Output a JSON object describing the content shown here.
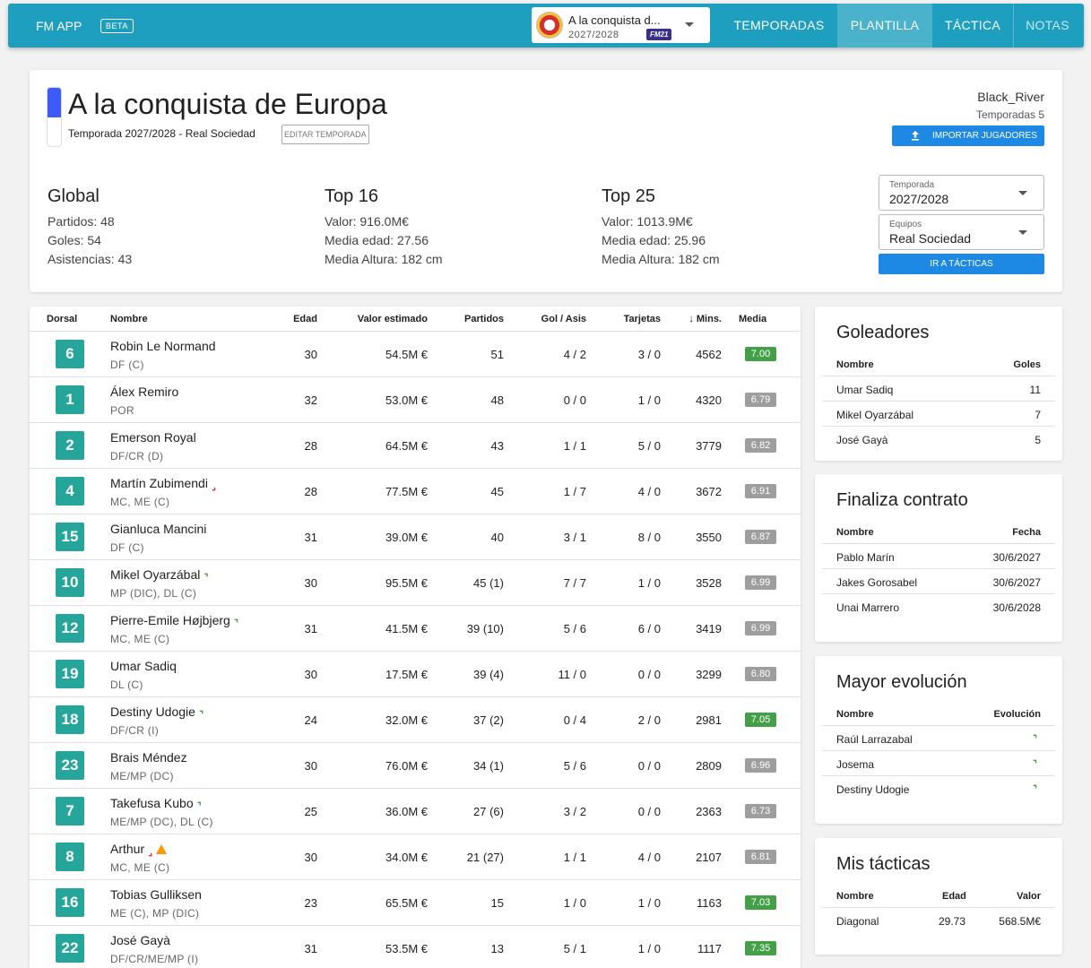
{
  "topbar": {
    "brand": "FM APP",
    "beta": "BETA",
    "career": {
      "name": "A la conquista d...",
      "season": "2027/2028",
      "badge": "FM21"
    },
    "nav": [
      {
        "label": "TEMPORADAS",
        "active": false
      },
      {
        "label": "PLANTILLA",
        "active": true
      },
      {
        "label": "TÁCTICA",
        "active": false
      },
      {
        "label": "NOTAS",
        "active": false
      }
    ]
  },
  "header": {
    "title": "A la conquista de Europa",
    "subtitle": "Temporada 2027/2028 - Real Sociedad",
    "edit_label": "EDITAR TEMPORADA",
    "user": "Black_River",
    "seasons": "Temporadas 5",
    "import_label": "IMPORTAR JUGADORES",
    "flag_colors": [
      "#3d5afe",
      "#ffffff"
    ]
  },
  "stats": {
    "global": {
      "title": "Global",
      "lines": [
        "Partidos: 48",
        "Goles: 54",
        "Asistencias: 43"
      ]
    },
    "top16": {
      "title": "Top 16",
      "lines": [
        "Valor: 916.0M€",
        "Media edad: 27.56",
        "Media Altura: 182 cm"
      ]
    },
    "top25": {
      "title": "Top 25",
      "lines": [
        "Valor: 1013.9M€",
        "Media edad: 25.96",
        "Media Altura: 182 cm"
      ]
    }
  },
  "filters": {
    "season_label": "Temporada",
    "season_value": "2027/2028",
    "team_label": "Equipos",
    "team_value": "Real Sociedad",
    "tactics_label": "IR A TÁCTICAS"
  },
  "table": {
    "headers": {
      "dorsal": "Dorsal",
      "nombre": "Nombre",
      "edad": "Edad",
      "valor": "Valor estimado",
      "partidos": "Partidos",
      "golasis": "Gol / Asis",
      "tarjetas": "Tarjetas",
      "mins": "Mins.",
      "media": "Media"
    },
    "players": [
      {
        "num": "6",
        "name": "Robin Le Normand",
        "pos": "DF (C)",
        "age": "30",
        "value": "54.5M €",
        "matches": "51",
        "ga": "4 / 2",
        "cards": "3 / 0",
        "mins": "4562",
        "rating": "7.00",
        "good": true,
        "trend": ""
      },
      {
        "num": "1",
        "name": "Álex Remiro",
        "pos": "POR",
        "age": "32",
        "value": "53.0M €",
        "matches": "48",
        "ga": "0 / 0",
        "cards": "1 / 0",
        "mins": "4320",
        "rating": "6.79",
        "good": false,
        "trend": ""
      },
      {
        "num": "2",
        "name": "Emerson Royal",
        "pos": "DF/CR (D)",
        "age": "28",
        "value": "64.5M €",
        "matches": "43",
        "ga": "1 / 1",
        "cards": "5 / 0",
        "mins": "3779",
        "rating": "6.82",
        "good": false,
        "trend": ""
      },
      {
        "num": "4",
        "name": "Martín Zubimendi",
        "pos": "MC, ME (C)",
        "age": "28",
        "value": "77.5M €",
        "matches": "45",
        "ga": "1 / 7",
        "cards": "4 / 0",
        "mins": "3672",
        "rating": "6.91",
        "good": false,
        "trend": "down"
      },
      {
        "num": "15",
        "name": "Gianluca Mancini",
        "pos": "DF (C)",
        "age": "31",
        "value": "39.0M €",
        "matches": "40",
        "ga": "3 / 1",
        "cards": "8 / 0",
        "mins": "3550",
        "rating": "6.87",
        "good": false,
        "trend": ""
      },
      {
        "num": "10",
        "name": "Mikel Oyarzábal",
        "pos": "MP (DIC), DL (C)",
        "age": "30",
        "value": "95.5M €",
        "matches": "45 (1)",
        "ga": "7 / 7",
        "cards": "1 / 0",
        "mins": "3528",
        "rating": "6.99",
        "good": false,
        "trend": "up"
      },
      {
        "num": "12",
        "name": "Pierre-Emile Højbjerg",
        "pos": "MC, ME (C)",
        "age": "31",
        "value": "41.5M €",
        "matches": "39 (10)",
        "ga": "5 / 6",
        "cards": "6 / 0",
        "mins": "3419",
        "rating": "6.99",
        "good": false,
        "trend": "up"
      },
      {
        "num": "19",
        "name": "Umar Sadiq",
        "pos": "DL (C)",
        "age": "30",
        "value": "17.5M €",
        "matches": "39 (4)",
        "ga": "11 / 0",
        "cards": "0 / 0",
        "mins": "3299",
        "rating": "6.80",
        "good": false,
        "trend": ""
      },
      {
        "num": "18",
        "name": "Destiny Udogie",
        "pos": "DF/CR (I)",
        "age": "24",
        "value": "32.0M €",
        "matches": "37 (2)",
        "ga": "0 / 4",
        "cards": "2 / 0",
        "mins": "2981",
        "rating": "7.05",
        "good": true,
        "trend": "up"
      },
      {
        "num": "23",
        "name": "Brais Méndez",
        "pos": "ME/MP (DC)",
        "age": "30",
        "value": "76.0M €",
        "matches": "34 (1)",
        "ga": "5 / 6",
        "cards": "0 / 0",
        "mins": "2809",
        "rating": "6.96",
        "good": false,
        "trend": ""
      },
      {
        "num": "7",
        "name": "Takefusa Kubo",
        "pos": "ME/MP (DC), DL (C)",
        "age": "25",
        "value": "36.0M €",
        "matches": "27 (6)",
        "ga": "3 / 2",
        "cards": "0 / 0",
        "mins": "2363",
        "rating": "6.73",
        "good": false,
        "trend": "up"
      },
      {
        "num": "8",
        "name": "Arthur",
        "pos": "MC, ME (C)",
        "age": "30",
        "value": "34.0M €",
        "matches": "21 (27)",
        "ga": "1 / 1",
        "cards": "4 / 0",
        "mins": "2107",
        "rating": "6.81",
        "good": false,
        "trend": "down",
        "warning": true
      },
      {
        "num": "16",
        "name": "Tobias Gulliksen",
        "pos": "ME (C), MP (DIC)",
        "age": "23",
        "value": "65.5M €",
        "matches": "15",
        "ga": "1 / 0",
        "cards": "1 / 0",
        "mins": "1163",
        "rating": "7.03",
        "good": true,
        "trend": ""
      },
      {
        "num": "22",
        "name": "José Gayà",
        "pos": "DF/CR/ME/MP (I)",
        "age": "31",
        "value": "53.5M €",
        "matches": "13",
        "ga": "5 / 1",
        "cards": "1 / 0",
        "mins": "1117",
        "rating": "7.35",
        "good": true,
        "trend": ""
      }
    ]
  },
  "scorers": {
    "title": "Goleadores",
    "col1": "Nombre",
    "col2": "Goles",
    "rows": [
      {
        "name": "Umar Sadiq",
        "val": "11"
      },
      {
        "name": "Mikel Oyarzábal",
        "val": "7"
      },
      {
        "name": "José Gayà",
        "val": "5"
      }
    ]
  },
  "contracts": {
    "title": "Finaliza contrato",
    "col1": "Nombre",
    "col2": "Fecha",
    "rows": [
      {
        "name": "Pablo Marín",
        "val": "30/6/2027"
      },
      {
        "name": "Jakes Gorosabel",
        "val": "30/6/2027"
      },
      {
        "name": "Unai Marrero",
        "val": "30/6/2028"
      }
    ]
  },
  "evolution": {
    "title": "Mayor evolución",
    "col1": "Nombre",
    "col2": "Evolución",
    "rows": [
      {
        "name": "Raúl Larrazabal"
      },
      {
        "name": "Josema"
      },
      {
        "name": "Destiny Udogie"
      }
    ]
  },
  "tactics": {
    "title": "Mis tácticas",
    "col1": "Nombre",
    "col2": "Edad",
    "col3": "Valor",
    "rows": [
      {
        "name": "Diagonal",
        "age": "29.73",
        "value": "568.5M€"
      }
    ]
  },
  "colors": {
    "accent": "#1f9fbf",
    "button": "#1e88e5",
    "number": "#26a69a",
    "rating_good": "#43a047",
    "rating_normal": "#9e9e9e"
  }
}
